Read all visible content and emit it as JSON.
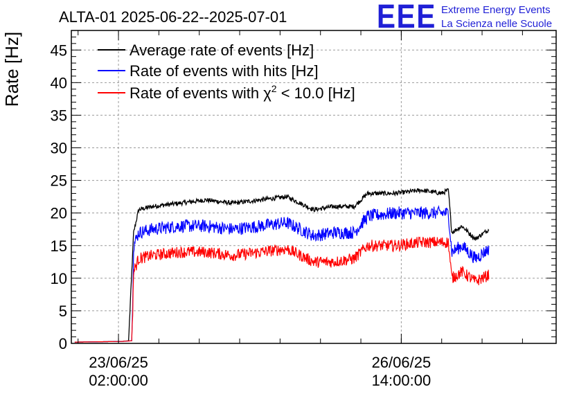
{
  "chart_data": {
    "type": "line",
    "title": "ALTA-01 2025-06-22--2025-07-01",
    "ylabel": "Rate [Hz]",
    "xlabel": "",
    "ylim": [
      0,
      48
    ],
    "yticks": [
      0,
      5,
      10,
      15,
      20,
      25,
      30,
      35,
      40,
      45
    ],
    "xlim": [
      "2025-06-22 12:00",
      "2025-06-28 12:00"
    ],
    "xticks": [
      {
        "x": "2025-06-23 02:00",
        "label_date": "23/06/25",
        "label_time": "02:00:00"
      },
      {
        "x": "2025-06-26 14:00",
        "label_date": "26/06/25",
        "label_time": "14:00:00"
      }
    ],
    "grid": true,
    "legend_position": "top-left",
    "legend": [
      {
        "label": "Average rate of events [Hz]",
        "color": "#000000"
      },
      {
        "label": "Rate of events with hits [Hz]",
        "color": "#0000ff"
      },
      {
        "label_prefix": "Rate of events with ",
        "label_symbol": "χ",
        "label_sup": "2",
        "label_suffix": " < 10.0 [Hz]",
        "color": "#ff0000"
      }
    ],
    "series": [
      {
        "name": "Average rate of events [Hz]",
        "color": "#000000",
        "noise": 0.35,
        "points": [
          [
            "2025-06-22 13:00",
            0.2
          ],
          [
            "2025-06-23 03:00",
            0.3
          ],
          [
            "2025-06-23 05:00",
            0.4
          ],
          [
            "2025-06-23 06:30",
            17.0
          ],
          [
            "2025-06-23 08:00",
            20.5
          ],
          [
            "2025-06-23 12:00",
            21.0
          ],
          [
            "2025-06-23 20:00",
            21.5
          ],
          [
            "2025-06-24 04:00",
            22.0
          ],
          [
            "2025-06-24 12:00",
            21.5
          ],
          [
            "2025-06-24 20:00",
            22.0
          ],
          [
            "2025-06-25 04:00",
            22.5
          ],
          [
            "2025-06-25 08:00",
            21.5
          ],
          [
            "2025-06-25 12:00",
            20.5
          ],
          [
            "2025-06-25 18:00",
            21.0
          ],
          [
            "2025-06-26 00:00",
            21.0
          ],
          [
            "2025-06-26 04:00",
            23.0
          ],
          [
            "2025-06-26 12:00",
            23.0
          ],
          [
            "2025-06-26 20:00",
            23.5
          ],
          [
            "2025-06-27 02:00",
            23.0
          ],
          [
            "2025-06-27 04:00",
            23.5
          ],
          [
            "2025-06-27 05:00",
            17.0
          ],
          [
            "2025-06-27 08:00",
            18.0
          ],
          [
            "2025-06-27 12:00",
            16.0
          ],
          [
            "2025-06-27 16:00",
            17.5
          ]
        ]
      },
      {
        "name": "Rate of events with hits [Hz]",
        "color": "#0000ff",
        "noise": 1.0,
        "points": [
          [
            "2025-06-22 13:00",
            0.2
          ],
          [
            "2025-06-23 03:00",
            0.3
          ],
          [
            "2025-06-23 06:00",
            0.4
          ],
          [
            "2025-06-23 06:30",
            15.0
          ],
          [
            "2025-06-23 08:00",
            17.0
          ],
          [
            "2025-06-23 12:00",
            17.5
          ],
          [
            "2025-06-23 20:00",
            18.0
          ],
          [
            "2025-06-24 04:00",
            18.0
          ],
          [
            "2025-06-24 12:00",
            17.5
          ],
          [
            "2025-06-24 20:00",
            18.0
          ],
          [
            "2025-06-25 04:00",
            18.5
          ],
          [
            "2025-06-25 08:00",
            17.5
          ],
          [
            "2025-06-25 12:00",
            16.5
          ],
          [
            "2025-06-25 18:00",
            17.0
          ],
          [
            "2025-06-26 00:00",
            17.0
          ],
          [
            "2025-06-26 04:00",
            19.5
          ],
          [
            "2025-06-26 12:00",
            20.0
          ],
          [
            "2025-06-26 20:00",
            20.0
          ],
          [
            "2025-06-27 02:00",
            20.0
          ],
          [
            "2025-06-27 04:00",
            20.0
          ],
          [
            "2025-06-27 05:00",
            14.0
          ],
          [
            "2025-06-27 08:00",
            15.0
          ],
          [
            "2025-06-27 12:00",
            13.0
          ],
          [
            "2025-06-27 16:00",
            14.5
          ]
        ]
      },
      {
        "name": "Rate of events with χ2 < 10.0 [Hz]",
        "color": "#ff0000",
        "noise": 0.9,
        "points": [
          [
            "2025-06-22 13:00",
            0.2
          ],
          [
            "2025-06-23 03:00",
            0.3
          ],
          [
            "2025-06-23 06:00",
            0.4
          ],
          [
            "2025-06-23 06:30",
            11.0
          ],
          [
            "2025-06-23 08:00",
            13.0
          ],
          [
            "2025-06-23 12:00",
            13.5
          ],
          [
            "2025-06-23 20:00",
            14.0
          ],
          [
            "2025-06-24 04:00",
            14.0
          ],
          [
            "2025-06-24 12:00",
            13.5
          ],
          [
            "2025-06-24 20:00",
            14.0
          ],
          [
            "2025-06-25 04:00",
            14.5
          ],
          [
            "2025-06-25 08:00",
            13.5
          ],
          [
            "2025-06-25 12:00",
            12.5
          ],
          [
            "2025-06-25 18:00",
            12.5
          ],
          [
            "2025-06-26 00:00",
            13.0
          ],
          [
            "2025-06-26 04:00",
            15.0
          ],
          [
            "2025-06-26 12:00",
            15.0
          ],
          [
            "2025-06-26 20:00",
            15.5
          ],
          [
            "2025-06-27 02:00",
            15.5
          ],
          [
            "2025-06-27 04:00",
            15.5
          ],
          [
            "2025-06-27 05:00",
            10.0
          ],
          [
            "2025-06-27 08:00",
            11.0
          ],
          [
            "2025-06-27 12:00",
            9.5
          ],
          [
            "2025-06-27 16:00",
            10.5
          ]
        ]
      }
    ]
  },
  "logo": {
    "letters": "EEE",
    "line1": "Extreme Energy Events",
    "line2": "La Scienza nelle Scuole",
    "color": "#1f1fd6"
  }
}
